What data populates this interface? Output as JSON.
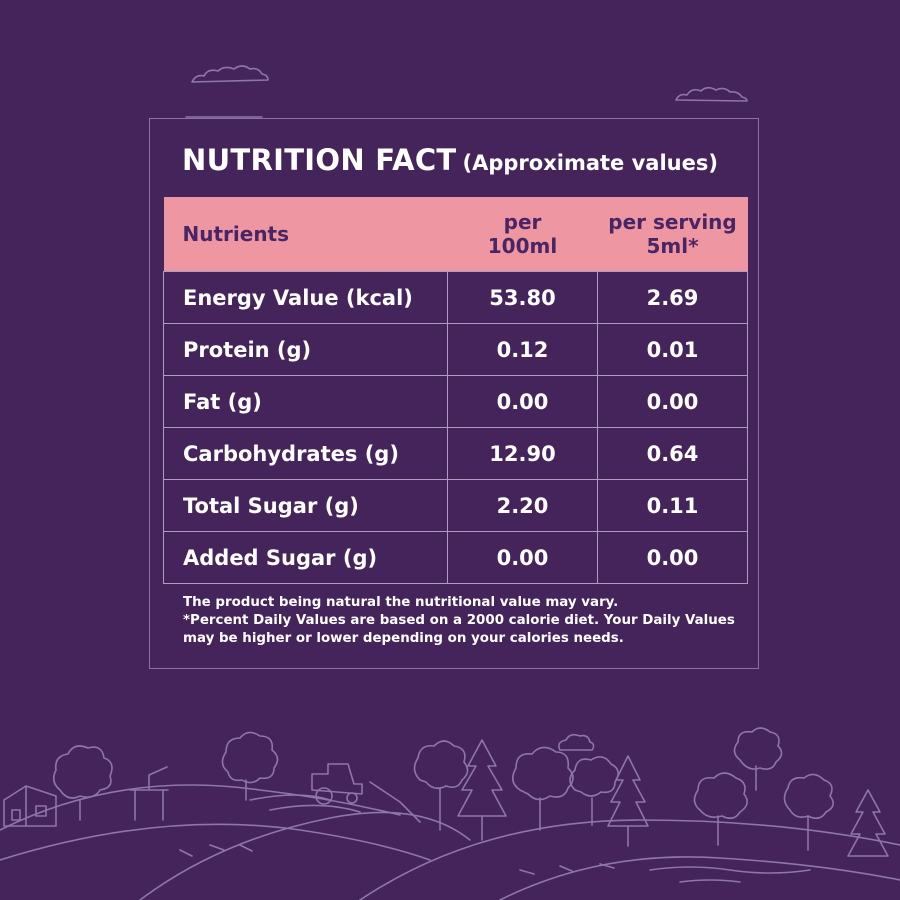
{
  "panel": {
    "title": "NUTRITION FACT",
    "subtitle": "(Approximate values)"
  },
  "table": {
    "headers": {
      "nutrients": "Nutrients",
      "per100_line1": "per",
      "per100_line2": "100ml",
      "serving_line1": "per serving",
      "serving_line2": "5ml*"
    },
    "rows": [
      {
        "name": "Energy Value (kcal)",
        "per100": "53.80",
        "serving": "2.69"
      },
      {
        "name": "Protein (g)",
        "per100": "0.12",
        "serving": "0.01"
      },
      {
        "name": "Fat (g)",
        "per100": "0.00",
        "serving": "0.00"
      },
      {
        "name": "Carbohydrates (g)",
        "per100": "12.90",
        "serving": "0.64"
      },
      {
        "name": "Total Sugar (g)",
        "per100": "2.20",
        "serving": "0.11"
      },
      {
        "name": "Added Sugar (g)",
        "per100": "0.00",
        "serving": "0.00"
      }
    ]
  },
  "notes": {
    "line1": "The product being natural the nutritional value may vary.",
    "line2": "*Percent Daily Values are based on a 2000 calorie diet. Your Daily Values may be higher or lower depending on your calories needs."
  },
  "colors": {
    "background": "#44245a",
    "header": "#ee96a2",
    "header_text": "#4a2563",
    "line_art": "#8d76a9"
  },
  "icons": [
    "cloud-icon",
    "village-landscape-illustration"
  ]
}
